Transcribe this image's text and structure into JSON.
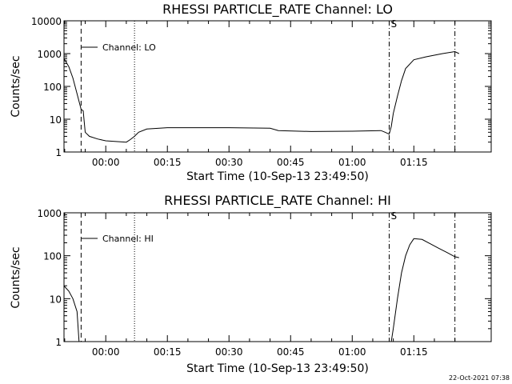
{
  "chart_data": [
    {
      "type": "line",
      "title": "RHESSI PARTICLE_RATE Channel: LO",
      "xlabel": "Start Time (10-Sep-13 23:49:50)",
      "ylabel": "Counts/sec",
      "y_scale": "log",
      "ylim": [
        1,
        10000
      ],
      "xlim_minutes_from_start": [
        0,
        104
      ],
      "x_ticks": [
        "00:00",
        "00:15",
        "00:30",
        "00:45",
        "01:00",
        "01:15"
      ],
      "y_ticks": [
        "1",
        "10",
        "100",
        "1000",
        "10000"
      ],
      "legend": "Channel: LO",
      "legend_position": "top-left",
      "markers": [
        {
          "type": "dashed",
          "time": "23:54"
        },
        {
          "type": "dotted",
          "time": "00:07"
        },
        {
          "type": "dash-dot",
          "time": "01:09",
          "label": "S"
        },
        {
          "type": "dash-dot",
          "time": "01:25"
        }
      ],
      "series": [
        {
          "points": [
            [
              "23:49:50",
              700
            ],
            [
              "23:50",
              650
            ],
            [
              "23:51",
              400
            ],
            [
              "23:52",
              180
            ],
            [
              "23:53",
              60
            ],
            [
              "23:54",
              20
            ],
            [
              "23:54:30",
              18
            ],
            [
              "23:55",
              4
            ],
            [
              "23:56",
              3
            ],
            [
              "23:58",
              2.5
            ],
            [
              "00:00",
              2.2
            ],
            [
              "00:05",
              2
            ],
            [
              "00:06",
              2.4
            ],
            [
              "00:07",
              3
            ],
            [
              "00:08",
              4
            ],
            [
              "00:10",
              5
            ],
            [
              "00:15",
              5.5
            ],
            [
              "00:30",
              5.5
            ],
            [
              "00:40",
              5.3
            ],
            [
              "00:42",
              4.5
            ],
            [
              "00:50",
              4.2
            ],
            [
              "01:00",
              4.3
            ],
            [
              "01:07",
              4.5
            ],
            [
              "01:08",
              4
            ],
            [
              "01:09",
              3.5
            ],
            [
              "01:09:30",
              6
            ],
            [
              "01:10",
              15
            ],
            [
              "01:11",
              50
            ],
            [
              "01:12",
              150
            ],
            [
              "01:13",
              350
            ],
            [
              "01:15",
              650
            ],
            [
              "01:18",
              800
            ],
            [
              "01:22",
              1000
            ],
            [
              "01:25",
              1150
            ],
            [
              "01:26",
              1000
            ]
          ]
        }
      ]
    },
    {
      "type": "line",
      "title": "RHESSI PARTICLE_RATE Channel: HI",
      "xlabel": "Start Time (10-Sep-13 23:49:50)",
      "ylabel": "Counts/sec",
      "y_scale": "log",
      "ylim": [
        1,
        1000
      ],
      "xlim_minutes_from_start": [
        0,
        104
      ],
      "x_ticks": [
        "00:00",
        "00:15",
        "00:30",
        "00:45",
        "01:00",
        "01:15"
      ],
      "y_ticks": [
        "1",
        "10",
        "100",
        "1000"
      ],
      "legend": "Channel: HI",
      "legend_position": "top-left",
      "markers": [
        {
          "type": "dashed",
          "time": "23:54"
        },
        {
          "type": "dotted",
          "time": "00:07"
        },
        {
          "type": "dash-dot",
          "time": "01:09",
          "label": "S"
        },
        {
          "type": "dash-dot",
          "time": "01:25"
        }
      ],
      "series": [
        {
          "points": [
            [
              "23:49:50",
              20
            ],
            [
              "23:50",
              19
            ],
            [
              "23:51",
              15
            ],
            [
              "23:52",
              10
            ],
            [
              "23:53",
              5
            ],
            [
              "23:53:30",
              1
            ],
            [
              "01:09:30",
              1
            ],
            [
              "01:10",
              2
            ],
            [
              "01:11",
              10
            ],
            [
              "01:12",
              40
            ],
            [
              "01:13",
              100
            ],
            [
              "01:14",
              180
            ],
            [
              "01:15",
              250
            ],
            [
              "01:17",
              240
            ],
            [
              "01:19",
              190
            ],
            [
              "01:21",
              150
            ],
            [
              "01:23",
              120
            ],
            [
              "01:25",
              95
            ],
            [
              "01:26",
              90
            ]
          ]
        }
      ]
    }
  ],
  "timestamp": "22-Oct-2021 07:38"
}
